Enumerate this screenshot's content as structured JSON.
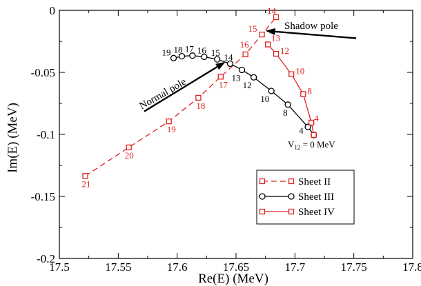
{
  "chart_data": {
    "type": "line",
    "xlabel": "Re(E) (MeV)",
    "ylabel": "Im(E) (MeV)",
    "xlim": [
      17.5,
      17.8
    ],
    "ylim": [
      -0.2,
      0
    ],
    "x_ticks": [
      17.5,
      17.55,
      17.6,
      17.65,
      17.7,
      17.75,
      17.8
    ],
    "x_tick_labels": [
      "17.5",
      "17.55",
      "17.6",
      "17.65",
      "17.7",
      "17.75",
      "17.8"
    ],
    "y_ticks": [
      0,
      -0.05,
      -0.1,
      -0.15,
      -0.2
    ],
    "y_tick_labels": [
      "0",
      "-0.05",
      "-0.1",
      "-0.15",
      "-0.2"
    ],
    "legend_position": "bottom-right",
    "series": [
      {
        "name": "Sheet II",
        "color": "#e02020",
        "line": "dashed",
        "marker": "square",
        "points": [
          {
            "x": 17.522,
            "y": -0.1335,
            "label": "21"
          },
          {
            "x": 17.559,
            "y": -0.1105,
            "label": "20"
          },
          {
            "x": 17.593,
            "y": -0.0895,
            "label": "19"
          },
          {
            "x": 17.618,
            "y": -0.0705,
            "label": "18"
          },
          {
            "x": 17.637,
            "y": -0.0535,
            "label": "17"
          },
          {
            "x": 17.658,
            "y": -0.0355,
            "label": "16"
          },
          {
            "x": 17.672,
            "y": -0.0195,
            "label": "15"
          },
          {
            "x": 17.684,
            "y": -0.0055,
            "label": "14"
          }
        ]
      },
      {
        "name": "Sheet III",
        "color": "#000000",
        "line": "solid",
        "marker": "circle",
        "points": [
          {
            "x": 17.597,
            "y": -0.0385,
            "label": "19"
          },
          {
            "x": 17.604,
            "y": -0.037,
            "label": "18"
          },
          {
            "x": 17.613,
            "y": -0.0365,
            "label": "17"
          },
          {
            "x": 17.623,
            "y": -0.0375,
            "label": "16"
          },
          {
            "x": 17.634,
            "y": -0.0395,
            "label": "15"
          },
          {
            "x": 17.645,
            "y": -0.043,
            "label": "14"
          },
          {
            "x": 17.655,
            "y": -0.048,
            "label": "13"
          },
          {
            "x": 17.665,
            "y": -0.054,
            "label": "12"
          },
          {
            "x": 17.68,
            "y": -0.065,
            "label": "10"
          },
          {
            "x": 17.694,
            "y": -0.076,
            "label": "8"
          },
          {
            "x": 17.711,
            "y": -0.094,
            "label": "4"
          },
          {
            "x": 17.716,
            "y": -0.1005,
            "label": ""
          }
        ]
      },
      {
        "name": "Sheet IV",
        "color": "#e02020",
        "line": "solid",
        "marker": "square",
        "points": [
          {
            "x": 17.716,
            "y": -0.1005,
            "label": ""
          },
          {
            "x": 17.714,
            "y": -0.0905,
            "label": "4"
          },
          {
            "x": 17.707,
            "y": -0.0675,
            "label": "8"
          },
          {
            "x": 17.697,
            "y": -0.0515,
            "label": "10"
          },
          {
            "x": 17.684,
            "y": -0.035,
            "label": "12"
          },
          {
            "x": 17.677,
            "y": -0.0275,
            "label": "13"
          }
        ]
      }
    ],
    "annotations": {
      "shadow_pole": {
        "text": "Shadow pole",
        "arrow_from": [
          17.752,
          -0.0225
        ],
        "arrow_to": [
          17.675,
          -0.0165
        ]
      },
      "normal_pole": {
        "text": "Normal pole",
        "arrow_from": [
          17.572,
          -0.0815
        ],
        "arrow_to": [
          17.641,
          -0.0415
        ]
      },
      "v12": {
        "main": "V",
        "sub": "12",
        "rest": " = 0 MeV"
      }
    }
  }
}
